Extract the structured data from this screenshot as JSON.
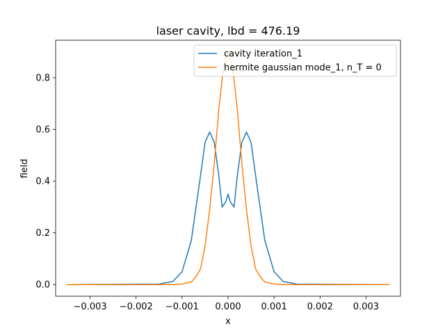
{
  "chart_data": {
    "type": "line",
    "title": "laser cavity, lbd = 476.19",
    "xlabel": "x",
    "ylabel": "field",
    "xlim": [
      -0.00375,
      0.00375
    ],
    "ylim": [
      -0.045,
      0.945
    ],
    "xticks": [
      -0.003,
      -0.002,
      -0.001,
      0.0,
      0.001,
      0.002,
      0.003
    ],
    "xtick_labels": [
      "−0.003",
      "−0.002",
      "−0.001",
      "0.000",
      "0.001",
      "0.002",
      "0.003"
    ],
    "yticks": [
      0.0,
      0.2,
      0.4,
      0.6,
      0.8
    ],
    "ytick_labels": [
      "0.0",
      "0.2",
      "0.4",
      "0.6",
      "0.8"
    ],
    "grid": false,
    "legend_position": "top-right",
    "series": [
      {
        "name": "cavity iteration_1",
        "color": "#1f77b4",
        "x": [
          -0.0035,
          -0.0015,
          -0.0012,
          -0.001,
          -0.0008,
          -0.0006,
          -0.0005,
          -0.0004,
          -0.0003,
          -0.0002,
          -0.00013,
          -5e-05,
          0.0,
          5e-05,
          0.00013,
          0.0002,
          0.0003,
          0.0004,
          0.0005,
          0.0006,
          0.0008,
          0.001,
          0.0012,
          0.0015,
          0.0035
        ],
        "y": [
          0.0,
          0.002,
          0.012,
          0.05,
          0.17,
          0.42,
          0.55,
          0.59,
          0.55,
          0.42,
          0.3,
          0.32,
          0.35,
          0.32,
          0.3,
          0.42,
          0.55,
          0.59,
          0.55,
          0.42,
          0.17,
          0.05,
          0.012,
          0.002,
          0.0
        ]
      },
      {
        "name": "hermite gaussian mode_1, n_T = 0",
        "color": "#ff7f0e",
        "x": [
          -0.0035,
          -0.0012,
          -0.001,
          -0.0008,
          -0.0007,
          -0.0006,
          -0.0005,
          -0.0004,
          -0.0003,
          -0.0002,
          -0.0001,
          0.0,
          0.0001,
          0.0002,
          0.0003,
          0.0004,
          0.0005,
          0.0006,
          0.0007,
          0.0008,
          0.001,
          0.0012,
          0.0035
        ],
        "y": [
          0.0,
          0.0,
          0.002,
          0.01,
          0.03,
          0.06,
          0.15,
          0.29,
          0.47,
          0.68,
          0.84,
          0.9,
          0.84,
          0.68,
          0.47,
          0.29,
          0.15,
          0.06,
          0.03,
          0.01,
          0.002,
          0.0,
          0.0
        ]
      }
    ]
  }
}
